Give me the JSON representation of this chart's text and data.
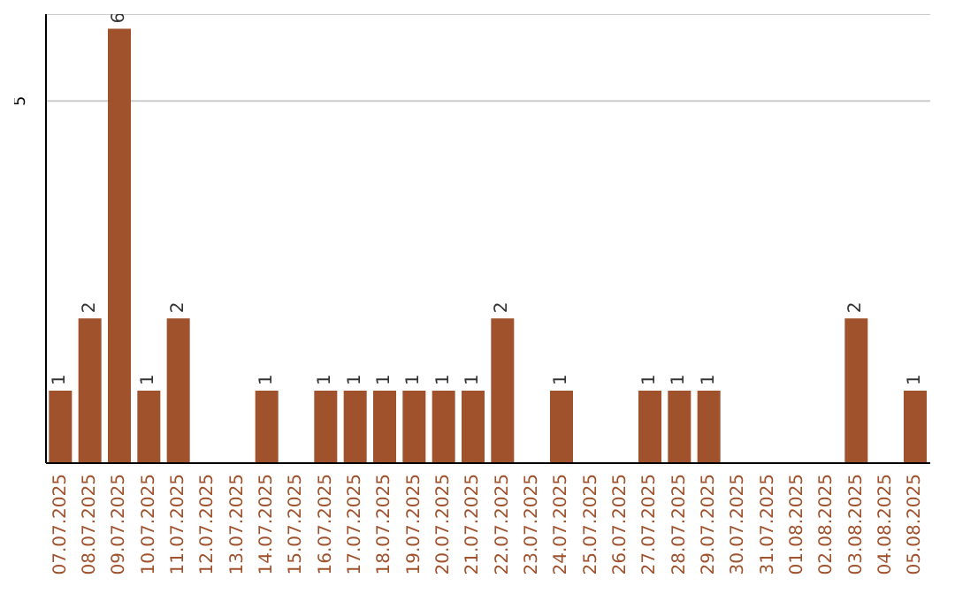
{
  "chart_data": {
    "type": "bar",
    "categories": [
      "07.07.2025",
      "08.07.2025",
      "09.07.2025",
      "10.07.2025",
      "11.07.2025",
      "12.07.2025",
      "13.07.2025",
      "14.07.2025",
      "15.07.2025",
      "16.07.2025",
      "17.07.2025",
      "18.07.2025",
      "19.07.2025",
      "20.07.2025",
      "21.07.2025",
      "22.07.2025",
      "23.07.2025",
      "24.07.2025",
      "25.07.2025",
      "26.07.2025",
      "27.07.2025",
      "28.07.2025",
      "29.07.2025",
      "30.07.2025",
      "31.07.2025",
      "01.08.2025",
      "02.08.2025",
      "03.08.2025",
      "04.08.2025",
      "05.08.2025"
    ],
    "values": [
      1,
      2,
      6,
      1,
      2,
      0,
      0,
      1,
      0,
      1,
      1,
      1,
      1,
      1,
      1,
      2,
      0,
      1,
      0,
      0,
      1,
      1,
      1,
      0,
      0,
      0,
      0,
      2,
      0,
      1
    ],
    "value_labels": [
      "1",
      "2",
      "6",
      "1",
      "2",
      null,
      null,
      "1",
      null,
      "1",
      "1",
      "1",
      "1",
      "1",
      "1",
      "2",
      null,
      "1",
      null,
      null,
      "1",
      "1",
      "1",
      null,
      null,
      null,
      null,
      "2",
      null,
      "1"
    ],
    "color": "#a0522d",
    "ylim": [
      0,
      6.2
    ],
    "yticks": [
      5
    ],
    "grid": "y"
  }
}
